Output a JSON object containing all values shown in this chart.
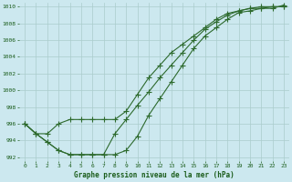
{
  "title": "Graphe pression niveau de la mer (hPa)",
  "background_color": "#cce8ef",
  "grid_color": "#aacccc",
  "line_color": "#2d6a2d",
  "marker_color": "#2d6a2d",
  "xlim": [
    -0.5,
    23.5
  ],
  "ylim": [
    991.5,
    1010.5
  ],
  "xticks": [
    0,
    1,
    2,
    3,
    4,
    5,
    6,
    7,
    8,
    9,
    10,
    11,
    12,
    13,
    14,
    15,
    16,
    17,
    18,
    19,
    20,
    21,
    22,
    23
  ],
  "yticks": [
    992,
    994,
    996,
    998,
    1000,
    1002,
    1004,
    1006,
    1008,
    1010
  ],
  "line1_x": [
    0,
    1,
    2,
    3,
    4,
    5,
    6,
    7,
    8,
    9,
    10,
    11,
    12,
    13,
    14,
    15,
    16,
    17,
    18,
    19,
    20,
    21,
    22,
    23
  ],
  "line1_y": [
    996.0,
    994.8,
    994.8,
    996.0,
    996.5,
    996.5,
    996.5,
    996.5,
    996.5,
    997.5,
    999.5,
    1001.5,
    1003.0,
    1004.5,
    1005.5,
    1006.5,
    1007.5,
    1008.5,
    1009.2,
    1009.5,
    1009.8,
    1010.0,
    1010.0,
    1010.0
  ],
  "line2_x": [
    0,
    1,
    2,
    3,
    4,
    5,
    6,
    7,
    8,
    9,
    10,
    11,
    12,
    13,
    14,
    15,
    16,
    17,
    18,
    19,
    20,
    21,
    22,
    23
  ],
  "line2_y": [
    996.0,
    994.8,
    993.8,
    992.8,
    992.3,
    992.3,
    992.3,
    992.3,
    992.3,
    992.8,
    994.5,
    997.0,
    999.0,
    1001.0,
    1003.0,
    1005.0,
    1006.5,
    1007.5,
    1008.5,
    1009.3,
    1009.5,
    1009.8,
    1010.0,
    1010.0
  ],
  "line3_x": [
    0,
    1,
    2,
    3,
    4,
    5,
    6,
    7,
    8,
    9,
    10,
    11,
    12,
    13,
    14,
    15,
    16,
    17,
    18,
    19,
    20,
    21,
    22,
    23
  ],
  "line3_y": [
    996.0,
    994.8,
    993.8,
    992.8,
    992.3,
    992.3,
    992.3,
    992.3,
    994.8,
    996.5,
    998.2,
    999.8,
    1001.5,
    1003.0,
    1004.5,
    1006.0,
    1007.3,
    1008.2,
    1009.0,
    1009.5,
    1009.8,
    1009.8,
    1009.8,
    1010.2
  ]
}
